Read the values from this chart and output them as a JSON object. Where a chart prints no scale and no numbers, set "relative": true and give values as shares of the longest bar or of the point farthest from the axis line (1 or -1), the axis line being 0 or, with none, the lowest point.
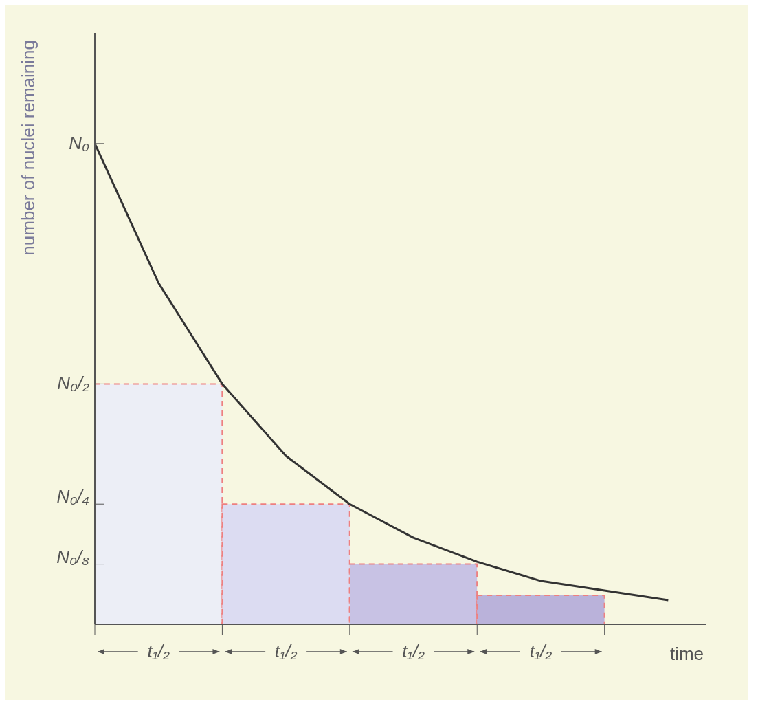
{
  "chart_data": {
    "type": "line",
    "xlabel": "time",
    "ylabel": "number of nuclei remaining",
    "relative": true,
    "categories": [
      null,
      "t₁/₂",
      null,
      "t₁/₂",
      null,
      "t₁/₂",
      null,
      "t₁/₂",
      null,
      null
    ],
    "ref_lines": [
      {
        "axis": "y",
        "value": 1,
        "label": "N₀"
      },
      {
        "axis": "y",
        "value": 0.5,
        "label": "N₀/₂"
      },
      {
        "axis": "y",
        "value": 0.25,
        "label": "N₀/₄"
      },
      {
        "axis": "y",
        "value": 0.125,
        "label": "N₀/₈"
      }
    ],
    "marker": "none",
    "line_style": "solid",
    "series": [
      {
        "type": "bar",
        "values": [
          null,
          0.5,
          null,
          0.25,
          null,
          0.125,
          null,
          0.06,
          null,
          null
        ],
        "colors": [
          null,
          "#eceef6",
          null,
          "#dcdcf2",
          null,
          "#c8c2e4",
          null,
          "#bab2da",
          null,
          null
        ]
      },
      {
        "color": "#333333",
        "values": [
          1,
          0.71,
          0.5,
          0.35,
          0.25,
          0.18,
          0.13,
          0.09,
          0.07,
          0.05
        ]
      }
    ]
  }
}
